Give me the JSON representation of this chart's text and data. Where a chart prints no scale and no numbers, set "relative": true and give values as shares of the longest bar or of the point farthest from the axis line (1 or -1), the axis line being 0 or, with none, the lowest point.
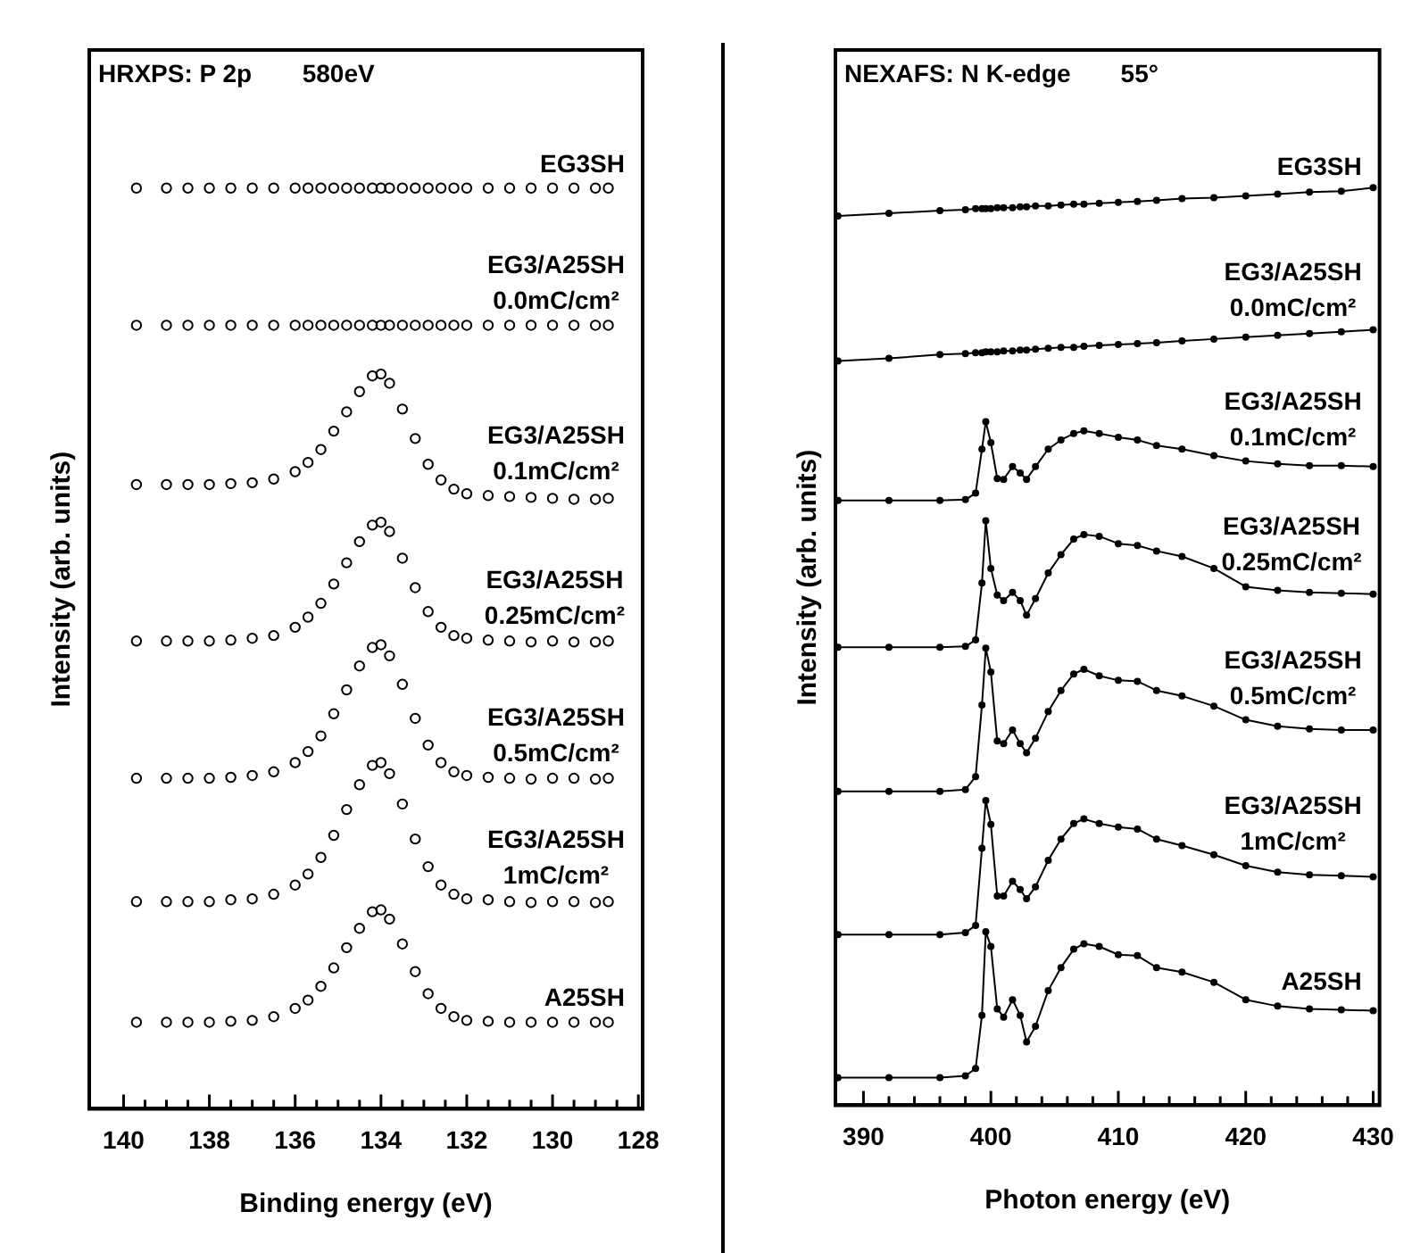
{
  "chart_data": [
    {
      "type": "scatter",
      "title": "HRXPS: P 2p",
      "subtitle": "580eV",
      "xlabel": "Binding energy (eV)",
      "ylabel": "Intensity (arb. units)",
      "relative": true,
      "marker": "circle",
      "xlim": [
        140.8,
        127.9
      ],
      "xticks": [
        140,
        {
          "value": 139.5,
          "label": null
        },
        {
          "value": 139,
          "label": null
        },
        {
          "value": 138.5,
          "label": null
        },
        138,
        {
          "value": 137.5,
          "label": null
        },
        {
          "value": 137,
          "label": null
        },
        {
          "value": 136.5,
          "label": null
        },
        136,
        {
          "value": 135.5,
          "label": null
        },
        {
          "value": 135,
          "label": null
        },
        {
          "value": 134.5,
          "label": null
        },
        134,
        {
          "value": 133.5,
          "label": null
        },
        {
          "value": 133,
          "label": null
        },
        {
          "value": 132.5,
          "label": null
        },
        132,
        {
          "value": 131.5,
          "label": null
        },
        {
          "value": 131,
          "label": null
        },
        {
          "value": 130.5,
          "label": null
        },
        130,
        {
          "value": 129.5,
          "label": null
        },
        {
          "value": 129,
          "label": null
        },
        {
          "value": 128.5,
          "label": null
        },
        128
      ],
      "x": [
        139.7,
        139,
        138.5,
        138,
        137.5,
        137,
        136.5,
        136,
        135.7,
        135.4,
        135.1,
        134.8,
        134.5,
        134.2,
        134.0,
        133.8,
        133.5,
        133.2,
        132.9,
        132.6,
        132.3,
        132,
        131.5,
        131,
        130.5,
        130,
        129.5,
        129,
        128.7
      ],
      "series": [
        {
          "name": "EG3SH",
          "color": "#000000",
          "values": [
            1,
            1,
            1,
            1,
            1,
            1,
            1,
            1,
            1,
            1,
            1,
            1,
            1,
            1,
            1,
            1,
            1,
            1,
            1,
            1,
            1,
            1,
            1,
            1,
            1,
            1,
            1,
            1,
            1
          ]
        },
        {
          "name": "EG3/A25SH\n0.0mC/cm²",
          "color": "#000000",
          "values": [
            0.851,
            0.851,
            0.851,
            0.851,
            0.851,
            0.851,
            0.851,
            0.851,
            0.851,
            0.851,
            0.851,
            0.851,
            0.851,
            0.851,
            0.851,
            0.851,
            0.851,
            0.851,
            0.851,
            0.851,
            0.851,
            0.851,
            0.851,
            0.851,
            0.851,
            0.851,
            0.851,
            0.851,
            0.851
          ]
        },
        {
          "name": "EG3/A25SH\n0.1mC/cm²",
          "color": "#000000",
          "values": [
            0.678,
            0.678,
            0.678,
            0.678,
            0.679,
            0.68,
            0.684,
            0.692,
            0.702,
            0.716,
            0.736,
            0.757,
            0.779,
            0.796,
            0.798,
            0.788,
            0.76,
            0.728,
            0.7,
            0.683,
            0.673,
            0.668,
            0.666,
            0.665,
            0.664,
            0.663,
            0.662,
            0.662,
            0.663
          ]
        },
        {
          "name": "EG3/A25SH\n0.25mC/cm²",
          "color": "#000000",
          "values": [
            0.508,
            0.508,
            0.508,
            0.508,
            0.509,
            0.511,
            0.514,
            0.523,
            0.534,
            0.549,
            0.57,
            0.593,
            0.616,
            0.634,
            0.637,
            0.627,
            0.598,
            0.566,
            0.54,
            0.523,
            0.514,
            0.511,
            0.509,
            0.508,
            0.507,
            0.508,
            0.507,
            0.507,
            0.508
          ]
        },
        {
          "name": "EG3/A25SH\n0.5mC/cm²",
          "color": "#000000",
          "values": [
            0.359,
            0.359,
            0.359,
            0.359,
            0.36,
            0.362,
            0.366,
            0.376,
            0.388,
            0.405,
            0.429,
            0.455,
            0.481,
            0.501,
            0.504,
            0.492,
            0.461,
            0.424,
            0.395,
            0.376,
            0.366,
            0.362,
            0.36,
            0.359,
            0.358,
            0.359,
            0.359,
            0.358,
            0.359
          ]
        },
        {
          "name": "EG3/A25SH\n1mC/cm²",
          "color": "#000000",
          "values": [
            0.225,
            0.225,
            0.225,
            0.225,
            0.227,
            0.228,
            0.233,
            0.243,
            0.255,
            0.273,
            0.297,
            0.325,
            0.352,
            0.373,
            0.376,
            0.364,
            0.331,
            0.293,
            0.263,
            0.243,
            0.233,
            0.228,
            0.227,
            0.225,
            0.224,
            0.225,
            0.225,
            0.224,
            0.225
          ]
        },
        {
          "name": "A25SH",
          "color": "#000000",
          "values": [
            0.094,
            0.094,
            0.094,
            0.094,
            0.095,
            0.096,
            0.1,
            0.109,
            0.118,
            0.133,
            0.153,
            0.175,
            0.196,
            0.214,
            0.216,
            0.206,
            0.179,
            0.149,
            0.125,
            0.109,
            0.1,
            0.096,
            0.095,
            0.094,
            0.094,
            0.094,
            0.094,
            0.094,
            0.094
          ]
        }
      ]
    },
    {
      "type": "line",
      "title": "NEXAFS: N K-edge",
      "subtitle": "55°",
      "xlabel": "Photon energy (eV)",
      "ylabel": "Intensity (arb. units)",
      "relative": true,
      "marker": "circle",
      "xlim": [
        387.8,
        430.5
      ],
      "xticks": [
        390,
        {
          "value": 392,
          "label": null
        },
        {
          "value": 394,
          "label": null
        },
        {
          "value": 396,
          "label": null
        },
        {
          "value": 398,
          "label": null
        },
        400,
        {
          "value": 402,
          "label": null
        },
        {
          "value": 404,
          "label": null
        },
        {
          "value": 406,
          "label": null
        },
        {
          "value": 408,
          "label": null
        },
        410,
        {
          "value": 412,
          "label": null
        },
        {
          "value": 414,
          "label": null
        },
        {
          "value": 416,
          "label": null
        },
        {
          "value": 418,
          "label": null
        },
        420,
        {
          "value": 422,
          "label": null
        },
        {
          "value": 424,
          "label": null
        },
        {
          "value": 426,
          "label": null
        },
        {
          "value": 428,
          "label": null
        },
        430
      ],
      "x": [
        388,
        392,
        396,
        398,
        398.8,
        399.3,
        399.6,
        400,
        400.5,
        401,
        401.7,
        402.3,
        402.8,
        403.5,
        404.5,
        405.5,
        406.5,
        407.3,
        408.5,
        410,
        411.5,
        413,
        415,
        417.5,
        420,
        422.5,
        425,
        427.5,
        430
      ],
      "series": [
        {
          "name": "EG3SH",
          "color": "#000000",
          "values": [
            0.969,
            0.972,
            0.975,
            0.976,
            0.977,
            0.977,
            0.977,
            0.977,
            0.978,
            0.978,
            0.978,
            0.979,
            0.979,
            0.98,
            0.98,
            0.981,
            0.982,
            0.982,
            0.983,
            0.984,
            0.985,
            0.986,
            0.988,
            0.989,
            0.991,
            0.993,
            0.995,
            0.996,
            1
          ]
        },
        {
          "name": "EG3/A25SH\n0.0mC/cm²",
          "color": "#000000",
          "values": [
            0.811,
            0.814,
            0.818,
            0.819,
            0.82,
            0.82,
            0.821,
            0.821,
            0.821,
            0.822,
            0.822,
            0.823,
            0.823,
            0.824,
            0.825,
            0.826,
            0.826,
            0.827,
            0.828,
            0.829,
            0.83,
            0.831,
            0.833,
            0.835,
            0.837,
            0.839,
            0.841,
            0.843,
            0.845
          ]
        },
        {
          "name": "EG3/A25SH\n0.1mC/cm²",
          "color": "#000000",
          "values": [
            0.659,
            0.659,
            0.659,
            0.66,
            0.667,
            0.715,
            0.745,
            0.722,
            0.683,
            0.682,
            0.696,
            0.689,
            0.682,
            0.696,
            0.715,
            0.725,
            0.732,
            0.735,
            0.732,
            0.728,
            0.725,
            0.719,
            0.715,
            0.708,
            0.702,
            0.699,
            0.697,
            0.697,
            0.696
          ]
        },
        {
          "name": "EG3/A25SH\n0.25mC/cm²",
          "color": "#000000",
          "values": [
            0.499,
            0.499,
            0.499,
            0.5,
            0.507,
            0.569,
            0.637,
            0.585,
            0.556,
            0.55,
            0.559,
            0.55,
            0.534,
            0.552,
            0.58,
            0.6,
            0.617,
            0.622,
            0.62,
            0.612,
            0.61,
            0.604,
            0.598,
            0.585,
            0.565,
            0.561,
            0.559,
            0.558,
            0.557
          ]
        },
        {
          "name": "EG3/A25SH\n0.5mC/cm²",
          "color": "#000000",
          "values": [
            0.342,
            0.342,
            0.342,
            0.344,
            0.358,
            0.436,
            0.498,
            0.472,
            0.397,
            0.394,
            0.409,
            0.394,
            0.384,
            0.4,
            0.429,
            0.452,
            0.47,
            0.475,
            0.468,
            0.463,
            0.462,
            0.452,
            0.446,
            0.435,
            0.42,
            0.413,
            0.41,
            0.409,
            0.409
          ]
        },
        {
          "name": "EG3/A25SH\n1mC/cm²",
          "color": "#000000",
          "values": [
            0.186,
            0.186,
            0.186,
            0.188,
            0.196,
            0.28,
            0.332,
            0.306,
            0.228,
            0.228,
            0.244,
            0.235,
            0.225,
            0.238,
            0.267,
            0.29,
            0.307,
            0.312,
            0.307,
            0.303,
            0.301,
            0.29,
            0.283,
            0.273,
            0.261,
            0.254,
            0.251,
            0.25,
            0.249
          ]
        },
        {
          "name": "A25SH",
          "color": "#000000",
          "values": [
            0.03,
            0.03,
            0.03,
            0.032,
            0.04,
            0.098,
            0.189,
            0.173,
            0.105,
            0.096,
            0.115,
            0.098,
            0.069,
            0.086,
            0.125,
            0.15,
            0.17,
            0.176,
            0.173,
            0.164,
            0.163,
            0.15,
            0.145,
            0.134,
            0.115,
            0.108,
            0.105,
            0.104,
            0.103
          ]
        }
      ]
    }
  ]
}
